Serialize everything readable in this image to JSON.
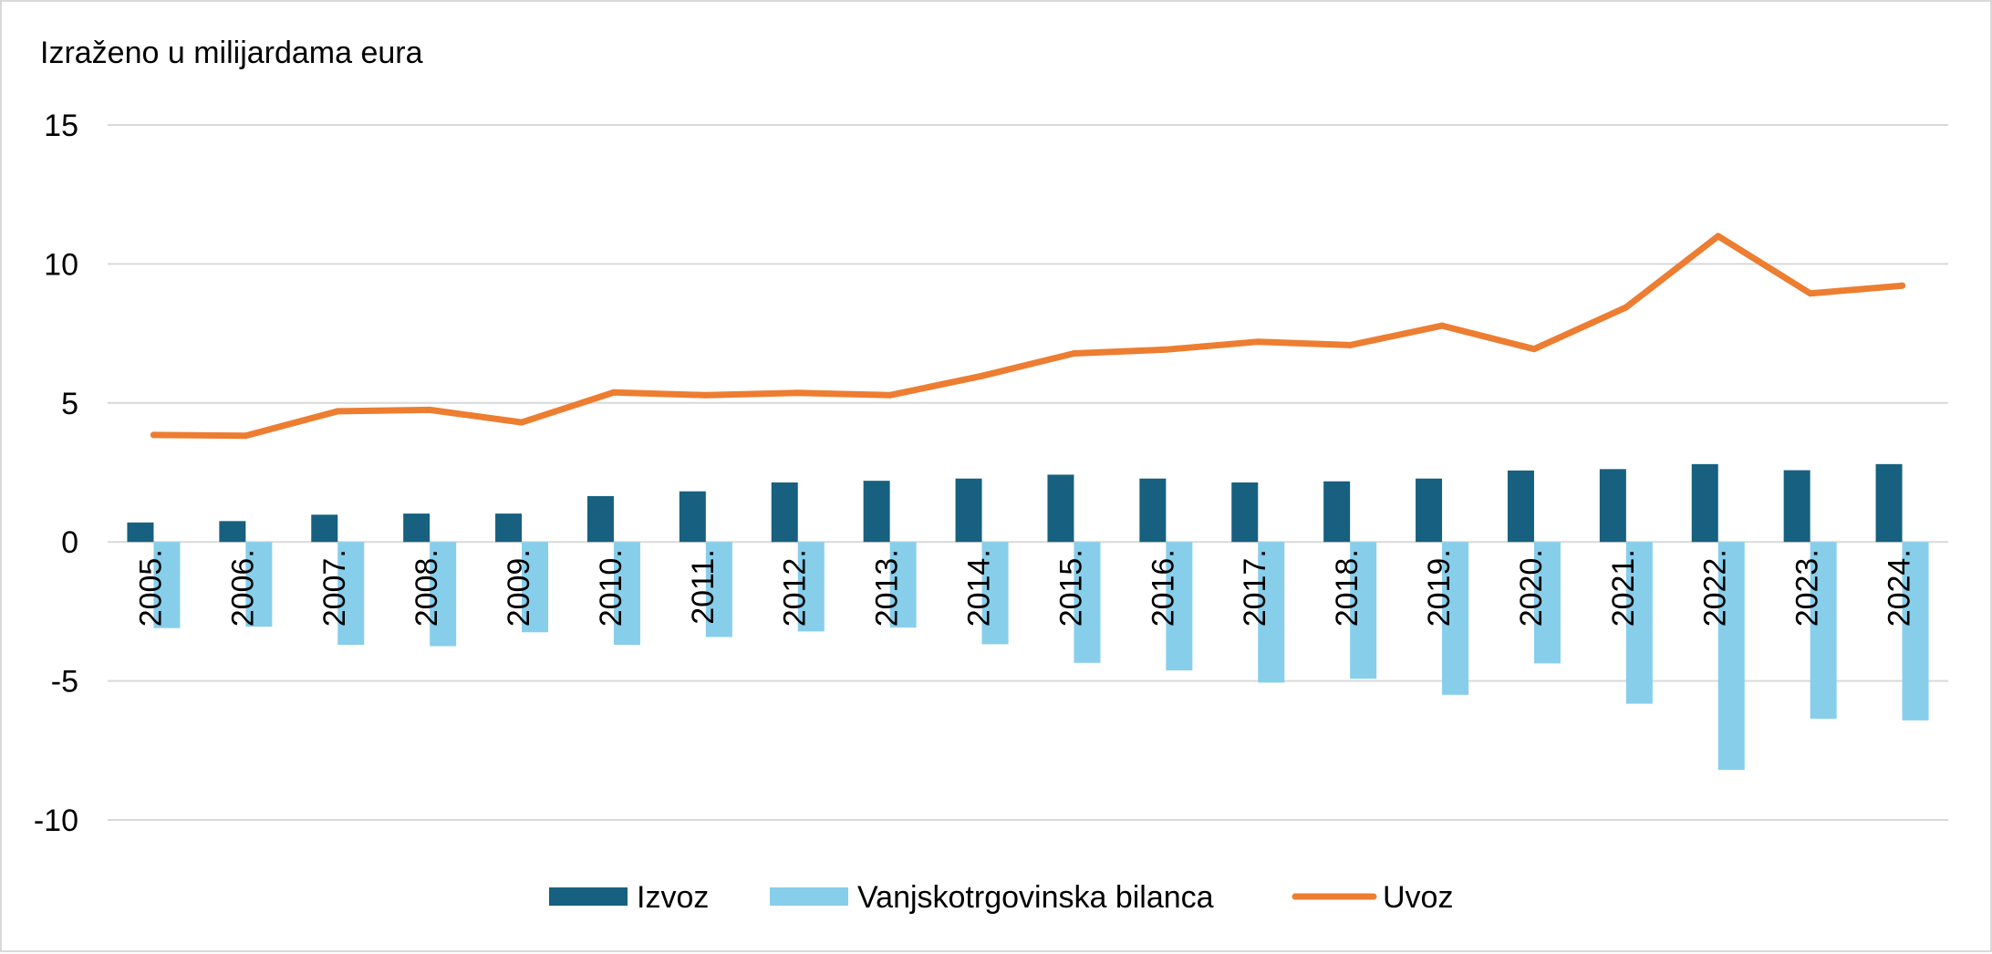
{
  "chart_data": {
    "type": "bar",
    "unit_label": "Izraženo u milijardama eura",
    "categories": [
      "2005.",
      "2006.",
      "2007.",
      "2008.",
      "2009.",
      "2010.",
      "2011.",
      "2012.",
      "2013.",
      "2014.",
      "2015.",
      "2016.",
      "2017.",
      "2018.",
      "2019.",
      "2020.",
      "2021.",
      "2022.",
      "2023.",
      "2024."
    ],
    "series": [
      {
        "name": "Izvoz",
        "kind": "bar",
        "color": "#17607f",
        "values": [
          0.7,
          0.75,
          0.98,
          1.02,
          1.02,
          1.65,
          1.82,
          2.14,
          2.2,
          2.28,
          2.42,
          2.28,
          2.14,
          2.18,
          2.28,
          2.57,
          2.62,
          2.8,
          2.58,
          2.8
        ]
      },
      {
        "name": "Vanjskotrgovinska bilanca",
        "kind": "bar",
        "color": "#87ceeb",
        "values": [
          -3.1,
          -3.05,
          -3.7,
          -3.75,
          -3.25,
          -3.7,
          -3.42,
          -3.22,
          -3.08,
          -3.68,
          -4.35,
          -4.62,
          -5.06,
          -4.92,
          -5.5,
          -4.37,
          -5.82,
          -8.2,
          -6.36,
          -6.42
        ]
      },
      {
        "name": "Uvoz",
        "kind": "line",
        "color": "#ed7d31",
        "values": [
          3.85,
          3.82,
          4.7,
          4.75,
          4.3,
          5.38,
          5.28,
          5.36,
          5.28,
          5.97,
          6.78,
          6.92,
          7.2,
          7.08,
          7.78,
          6.94,
          8.44,
          11.0,
          8.94,
          9.22
        ]
      }
    ],
    "y_ticks": [
      "15",
      "10",
      "5",
      "0",
      "-5",
      "-10"
    ],
    "ylim": [
      -10,
      15
    ],
    "grid": true,
    "legend_position": "bottom-center"
  }
}
